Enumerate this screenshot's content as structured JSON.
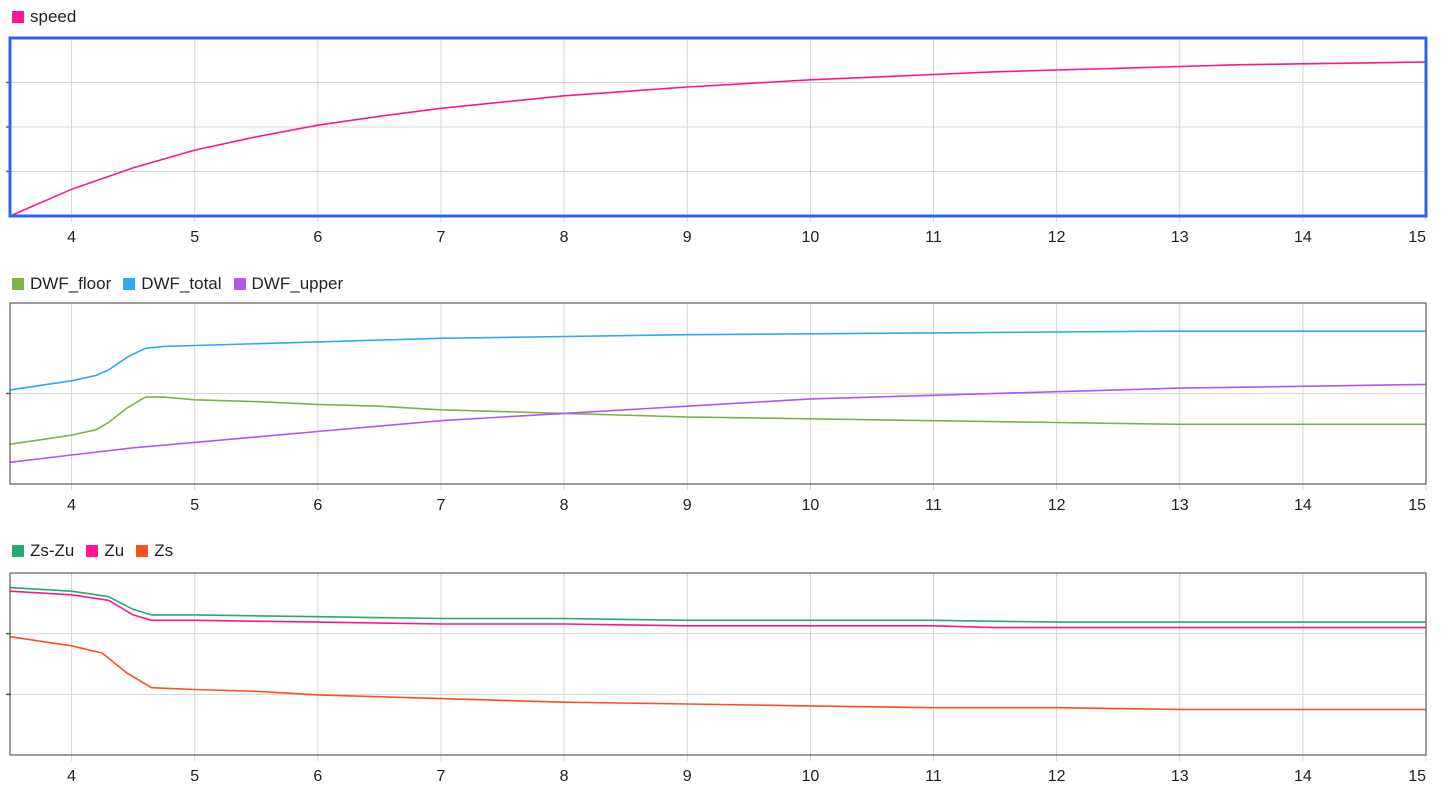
{
  "chart_data": [
    {
      "type": "line",
      "selected": true,
      "xlim": [
        3.5,
        15
      ],
      "x_ticks": [
        4,
        5,
        6,
        7,
        8,
        9,
        10,
        11,
        12,
        13,
        14,
        15
      ],
      "y_gridlines": 3,
      "grid": true,
      "legend_position": "top-left",
      "series": [
        {
          "name": "speed",
          "color": "#ff1493",
          "points": [
            [
              3.5,
              0
            ],
            [
              4,
              0.15
            ],
            [
              4.5,
              0.27
            ],
            [
              5,
              0.37
            ],
            [
              5.5,
              0.445
            ],
            [
              6,
              0.51
            ],
            [
              6.5,
              0.56
            ],
            [
              7,
              0.605
            ],
            [
              7.5,
              0.64
            ],
            [
              8,
              0.675
            ],
            [
              8.5,
              0.7
            ],
            [
              9,
              0.725
            ],
            [
              9.5,
              0.745
            ],
            [
              10,
              0.765
            ],
            [
              10.5,
              0.78
            ],
            [
              11,
              0.795
            ],
            [
              11.5,
              0.81
            ],
            [
              12,
              0.82
            ],
            [
              12.5,
              0.83
            ],
            [
              13,
              0.84
            ],
            [
              13.5,
              0.85
            ],
            [
              14,
              0.855
            ],
            [
              14.5,
              0.86
            ],
            [
              15,
              0.865
            ]
          ]
        }
      ]
    },
    {
      "type": "line",
      "xlim": [
        3.5,
        15
      ],
      "x_ticks": [
        4,
        5,
        6,
        7,
        8,
        9,
        10,
        11,
        12,
        13,
        14,
        15
      ],
      "y_gridlines": 1,
      "grid": true,
      "legend_position": "top-left",
      "series": [
        {
          "name": "DWF_floor",
          "color": "#7cb342",
          "points": [
            [
              3.5,
              0.22
            ],
            [
              3.8,
              0.25
            ],
            [
              4,
              0.27
            ],
            [
              4.2,
              0.3
            ],
            [
              4.3,
              0.34
            ],
            [
              4.45,
              0.42
            ],
            [
              4.6,
              0.48
            ],
            [
              4.75,
              0.48
            ],
            [
              5,
              0.465
            ],
            [
              5.5,
              0.455
            ],
            [
              6,
              0.44
            ],
            [
              6.5,
              0.43
            ],
            [
              7,
              0.41
            ],
            [
              8,
              0.39
            ],
            [
              9,
              0.37
            ],
            [
              10,
              0.36
            ],
            [
              11,
              0.35
            ],
            [
              12,
              0.34
            ],
            [
              13,
              0.33
            ],
            [
              15,
              0.33
            ]
          ]
        },
        {
          "name": "DWF_total",
          "color": "#2ea7f5",
          "points": [
            [
              3.5,
              0.52
            ],
            [
              3.8,
              0.55
            ],
            [
              4,
              0.57
            ],
            [
              4.2,
              0.6
            ],
            [
              4.3,
              0.63
            ],
            [
              4.45,
              0.7
            ],
            [
              4.6,
              0.75
            ],
            [
              4.75,
              0.76
            ],
            [
              5,
              0.765
            ],
            [
              5.5,
              0.775
            ],
            [
              6,
              0.785
            ],
            [
              6.5,
              0.795
            ],
            [
              7,
              0.805
            ],
            [
              8,
              0.815
            ],
            [
              9,
              0.825
            ],
            [
              10,
              0.83
            ],
            [
              11,
              0.835
            ],
            [
              12,
              0.84
            ],
            [
              13,
              0.845
            ],
            [
              15,
              0.845
            ]
          ]
        },
        {
          "name": "DWF_upper",
          "color": "#b355f2",
          "points": [
            [
              3.5,
              0.12
            ],
            [
              4,
              0.16
            ],
            [
              4.5,
              0.2
            ],
            [
              5,
              0.23
            ],
            [
              5.5,
              0.26
            ],
            [
              6,
              0.29
            ],
            [
              6.5,
              0.32
            ],
            [
              7,
              0.35
            ],
            [
              7.5,
              0.37
            ],
            [
              8,
              0.39
            ],
            [
              8.5,
              0.41
            ],
            [
              9,
              0.43
            ],
            [
              9.5,
              0.45
            ],
            [
              10,
              0.47
            ],
            [
              11,
              0.49
            ],
            [
              12,
              0.51
            ],
            [
              13,
              0.53
            ],
            [
              14,
              0.54
            ],
            [
              15,
              0.55
            ]
          ]
        }
      ]
    },
    {
      "type": "line",
      "xlim": [
        3.5,
        15
      ],
      "x_ticks": [
        4,
        5,
        6,
        7,
        8,
        9,
        10,
        11,
        12,
        13,
        14,
        15
      ],
      "y_gridlines": 2,
      "grid": true,
      "legend_position": "top-left",
      "series": [
        {
          "name": "Zs-Zu",
          "color": "#26a96c",
          "points": [
            [
              3.5,
              0.92
            ],
            [
              4,
              0.9
            ],
            [
              4.3,
              0.87
            ],
            [
              4.5,
              0.8
            ],
            [
              4.65,
              0.77
            ],
            [
              5,
              0.77
            ],
            [
              6,
              0.76
            ],
            [
              7,
              0.75
            ],
            [
              8,
              0.75
            ],
            [
              9,
              0.74
            ],
            [
              10,
              0.74
            ],
            [
              11,
              0.74
            ],
            [
              12,
              0.73
            ],
            [
              13,
              0.73
            ],
            [
              15,
              0.73
            ]
          ]
        },
        {
          "name": "Zu",
          "color": "#ff1493",
          "points": [
            [
              3.5,
              0.9
            ],
            [
              4,
              0.88
            ],
            [
              4.3,
              0.85
            ],
            [
              4.5,
              0.77
            ],
            [
              4.65,
              0.74
            ],
            [
              5,
              0.74
            ],
            [
              6,
              0.73
            ],
            [
              7,
              0.72
            ],
            [
              8,
              0.72
            ],
            [
              9,
              0.71
            ],
            [
              10,
              0.71
            ],
            [
              11,
              0.71
            ],
            [
              11.5,
              0.7
            ],
            [
              12,
              0.7
            ],
            [
              13,
              0.7
            ],
            [
              15,
              0.7
            ]
          ]
        },
        {
          "name": "Zs",
          "color": "#ff4f1f",
          "points": [
            [
              3.5,
              0.65
            ],
            [
              3.8,
              0.62
            ],
            [
              4,
              0.6
            ],
            [
              4.25,
              0.56
            ],
            [
              4.45,
              0.45
            ],
            [
              4.65,
              0.37
            ],
            [
              5,
              0.36
            ],
            [
              5.5,
              0.35
            ],
            [
              6,
              0.33
            ],
            [
              7,
              0.31
            ],
            [
              8,
              0.29
            ],
            [
              9,
              0.28
            ],
            [
              10,
              0.27
            ],
            [
              11,
              0.26
            ],
            [
              12,
              0.26
            ],
            [
              13,
              0.25
            ],
            [
              15,
              0.25
            ]
          ]
        }
      ]
    }
  ]
}
